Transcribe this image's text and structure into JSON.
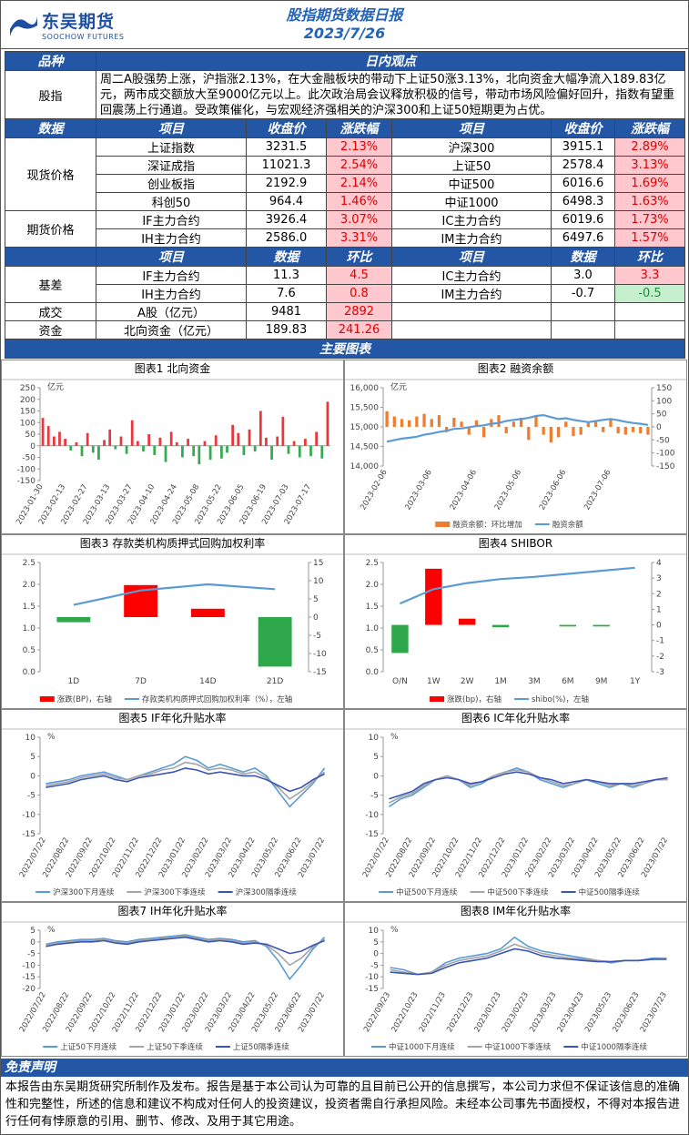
{
  "header": {
    "logo": "东吴期货",
    "logo_sub": "SOOCHOW FUTURES",
    "title": "股指期货数据日报",
    "date": "2023/7/26"
  },
  "table": {
    "head1": [
      "品种",
      "日内观点"
    ],
    "view": {
      "label": "股指",
      "text": "周二A股强势上涨，沪指涨2.13%，在大金融板块的带动下上证50涨3.13%，北向资金大幅净流入189.83亿元，两市成交额放大至9000亿元以上。此次政治局会议释放积极的信号，带动市场风险偏好回升，指数有望重回震荡上行通道。受政策催化，与宏观经济强相关的沪深300和上证50短期更为占优。"
    },
    "head2": [
      "数据",
      "项目",
      "收盘价",
      "涨跌幅",
      "项目",
      "收盘价",
      "涨跌幅"
    ],
    "spot": {
      "label": "现货价格",
      "rows": [
        [
          "上证指数",
          "3231.5",
          "2.13%",
          "沪深300",
          "3915.1",
          "2.89%"
        ],
        [
          "深证成指",
          "11021.3",
          "2.54%",
          "上证50",
          "2578.4",
          "3.13%"
        ],
        [
          "创业板指",
          "2192.9",
          "2.14%",
          "中证500",
          "6016.6",
          "1.69%"
        ],
        [
          "科创50",
          "964.4",
          "1.46%",
          "中证1000",
          "6498.3",
          "1.63%"
        ]
      ]
    },
    "futures": {
      "label": "期货价格",
      "rows": [
        [
          "IF主力合约",
          "3926.4",
          "3.07%",
          "IC主力合约",
          "6019.6",
          "1.73%"
        ],
        [
          "IH主力合约",
          "2586.0",
          "3.31%",
          "IM主力合约",
          "6497.6",
          "1.57%"
        ]
      ]
    },
    "head3": [
      "项目",
      "数据",
      "环比",
      "项目",
      "数据",
      "环比"
    ],
    "basis": {
      "label": "基差",
      "rows": [
        [
          "IF主力合约",
          "11.3",
          "4.5",
          "IC主力合约",
          "3.0",
          "3.3"
        ],
        [
          "IH主力合约",
          "7.6",
          "0.8",
          "IM主力合约",
          "-0.7",
          "-0.5"
        ]
      ]
    },
    "turnover": {
      "label": "成交",
      "row": [
        "A股（亿元）",
        "9481",
        "2892"
      ]
    },
    "capital": {
      "label": "资金",
      "row": [
        "北向资金（亿元）",
        "189.83",
        "241.26"
      ]
    }
  },
  "charts_title": "主要图表",
  "chart_data": [
    {
      "type": "bar",
      "title": "图表1  北向资金",
      "y_unit": "亿元",
      "up_color": "#e8383d",
      "down_color": "#37a853",
      "categories": [
        "2023-01-30",
        null,
        null,
        null,
        "2023-02-13",
        null,
        null,
        null,
        "2023-02-27",
        null,
        null,
        null,
        "2023-03-13",
        null,
        null,
        null,
        "2023-03-27",
        null,
        null,
        null,
        "2023-04-10",
        null,
        null,
        null,
        "2023-04-24",
        null,
        null,
        null,
        "2023-05-08",
        null,
        null,
        null,
        "2023-05-22",
        null,
        null,
        null,
        "2023-06-05",
        null,
        null,
        null,
        "2023-06-19",
        null,
        null,
        null,
        "2023-07-03",
        null,
        null,
        null,
        "2023-07-17",
        null,
        null,
        null
      ],
      "values": [
        120,
        85,
        40,
        60,
        30,
        -20,
        15,
        -45,
        55,
        -30,
        -60,
        25,
        70,
        -15,
        40,
        -35,
        110,
        20,
        -25,
        50,
        -40,
        35,
        -70,
        60,
        15,
        -50,
        30,
        -45,
        -80,
        20,
        -60,
        45,
        -55,
        -30,
        90,
        55,
        -40,
        70,
        -25,
        150,
        35,
        -60,
        40,
        125,
        -35,
        20,
        -50,
        30,
        -45,
        60,
        -55,
        189.83
      ],
      "ylim": [
        -150,
        250
      ],
      "yticks": [
        -150,
        -100,
        -50,
        0,
        50,
        100,
        150,
        200,
        250
      ]
    },
    {
      "type": "combo",
      "title": "图表2  融资余额",
      "y_unit": "亿元",
      "categories": [
        "2023-02-06",
        null,
        null,
        null,
        null,
        null,
        "2023-03-06",
        null,
        null,
        null,
        null,
        null,
        "2023-04-06",
        null,
        null,
        null,
        null,
        null,
        "2023-05-06",
        null,
        null,
        null,
        null,
        null,
        "2023-06-06",
        null,
        null,
        null,
        null,
        null,
        "2023-07-06",
        null,
        null,
        null,
        null,
        null
      ],
      "series": [
        {
          "name": "融资余额：环比增加",
          "color": "#ed7d31",
          "type": "bar",
          "axis": "y2",
          "values": [
            60,
            40,
            30,
            25,
            40,
            50,
            30,
            45,
            -20,
            35,
            20,
            -30,
            25,
            -40,
            30,
            45,
            -25,
            20,
            35,
            -50,
            40,
            -30,
            -60,
            -40,
            20,
            -35,
            -30,
            15,
            25,
            -20,
            30,
            -25,
            -30,
            -20,
            -25,
            -30
          ]
        },
        {
          "name": "融资余额",
          "color": "#5b9bd5",
          "type": "line",
          "values": [
            14620,
            14660,
            14700,
            14720,
            14750,
            14800,
            14830,
            14870,
            14900,
            14950,
            14960,
            14990,
            15020,
            15040,
            15080,
            15100,
            15150,
            15180,
            15200,
            15230,
            15280,
            15300,
            15250,
            15200,
            15220,
            15180,
            15150,
            15120,
            15150,
            15180,
            15200,
            15170,
            15130,
            15100,
            15080,
            15050
          ]
        }
      ],
      "ylim": [
        14000,
        16000
      ],
      "yticks": [
        {
          "value": 14000,
          "label": "14,000"
        },
        {
          "value": 14500,
          "label": "14,500"
        },
        {
          "value": 15000,
          "label": "15,000"
        },
        {
          "value": 15500,
          "label": "15,500"
        },
        {
          "value": 16000,
          "label": "16,000"
        }
      ],
      "y2lim": [
        -150,
        150
      ],
      "y2ticks": [
        -150,
        -100,
        -50,
        0,
        50,
        100,
        150
      ]
    },
    {
      "type": "combo",
      "title": "图表3  存款类机构质押式回购加权利率",
      "up_color": "#ff0000",
      "down_color": "#2ea84a",
      "categories": [
        "1D",
        "7D",
        "14D",
        "21D"
      ],
      "series": [
        {
          "name": "涨跌(BP)，右轴",
          "color": "#ff0000",
          "type": "bar",
          "axis": "y2",
          "values": [
            -1.4,
            8.8,
            2.3,
            -13.6
          ]
        },
        {
          "name": "存款类机构质押式回购加权利率（%），左轴",
          "color": "#5b9bd5",
          "type": "line",
          "values": [
            1.53,
            1.86,
            2.0,
            1.89
          ]
        }
      ],
      "ylim": [
        0,
        2.5
      ],
      "yticks": [
        {
          "value": 0,
          "label": "0.0"
        },
        {
          "value": 0.5,
          "label": "0.5"
        },
        {
          "value": 1,
          "label": "1.0"
        },
        {
          "value": 1.5,
          "label": "1.5"
        },
        {
          "value": 2,
          "label": "2.0"
        },
        {
          "value": 2.5,
          "label": "2.5"
        }
      ],
      "y2lim": [
        -15,
        15
      ],
      "y2ticks": [
        -15,
        -10,
        -5,
        0,
        5,
        10,
        15
      ]
    },
    {
      "type": "combo",
      "title": "图表4  SHIBOR",
      "up_color": "#ff0000",
      "down_color": "#2ea84a",
      "categories": [
        "O/N",
        "1W",
        "2W",
        "1M",
        "3M",
        "6M",
        "9M",
        "1Y"
      ],
      "series": [
        {
          "name": "涨跌(bp)，右轴",
          "color": "#ff0000",
          "type": "bar",
          "axis": "y2",
          "values": [
            -1.8,
            3.6,
            0.4,
            -0.15,
            0,
            -0.1,
            -0.1,
            0
          ]
        },
        {
          "name": "shibo(%)，左轴",
          "color": "#5b9bd5",
          "type": "line",
          "values": [
            1.56,
            1.89,
            2.03,
            2.12,
            2.17,
            2.24,
            2.31,
            2.38
          ]
        }
      ],
      "ylim": [
        0,
        2.5
      ],
      "yticks": [
        {
          "value": 0,
          "label": "0.0"
        },
        {
          "value": 0.5,
          "label": "0.5"
        },
        {
          "value": 1,
          "label": "1.0"
        },
        {
          "value": 1.5,
          "label": "1.5"
        },
        {
          "value": 2,
          "label": "2.0"
        },
        {
          "value": 2.5,
          "label": "2.5"
        }
      ],
      "y2lim": [
        -3,
        4
      ],
      "y2ticks": [
        -3,
        -2,
        -1,
        0,
        1,
        2,
        3,
        4
      ]
    },
    {
      "type": "line",
      "title": "图表5  IF年化升贴水率",
      "y_unit": "%",
      "categories": [
        "2022/07/22",
        null,
        "2022/08/22",
        null,
        "2022/09/22",
        null,
        "2022/10/22",
        null,
        "2022/11/22",
        null,
        "2022/12/22",
        null,
        "2023/01/22",
        null,
        "2023/02/22",
        null,
        "2023/03/22",
        null,
        "2023/04/22",
        null,
        "2023/05/22",
        null,
        "2023/06/22",
        null,
        "2023/07/22"
      ],
      "series": [
        {
          "name": "沪深300下月连续",
          "color": "#5b9bd5",
          "values": [
            -2,
            -1.5,
            -1,
            0,
            0.5,
            1,
            0,
            -1,
            0,
            1,
            2,
            3,
            5,
            4,
            2,
            3,
            2,
            1,
            2,
            0,
            -4,
            -8,
            -5,
            -2,
            2
          ]
        },
        {
          "name": "沪深300下季连续",
          "color": "#a5a5a5",
          "values": [
            -2.5,
            -2,
            -1.5,
            -0.5,
            0,
            0.5,
            -0.5,
            -1,
            0,
            0.5,
            1.5,
            2,
            3.5,
            3,
            1.5,
            2,
            1.5,
            0.5,
            1,
            -0.5,
            -3,
            -6,
            -4,
            -1.5,
            1
          ]
        },
        {
          "name": "沪深300隔季连续",
          "color": "#3a55b4",
          "values": [
            -3,
            -2.5,
            -2,
            -1,
            -0.5,
            0,
            -1,
            -1.5,
            -0.5,
            0,
            0.5,
            1,
            2,
            1.5,
            0.5,
            1,
            0.5,
            0,
            0,
            -1,
            -2.5,
            -4,
            -3,
            -1,
            0.5
          ]
        }
      ],
      "ylim": [
        -15,
        10
      ],
      "yticks": [
        -15,
        -10,
        -5,
        0,
        5,
        10
      ]
    },
    {
      "type": "line",
      "title": "图表6  IC年化升贴水率",
      "y_unit": "%",
      "categories": [
        "2022/07/22",
        null,
        "2022/08/22",
        null,
        "2022/09/22",
        null,
        "2022/10/22",
        null,
        "2022/11/22",
        null,
        "2022/12/22",
        null,
        "2023/01/22",
        null,
        "2023/02/22",
        null,
        "2023/03/22",
        null,
        "2023/04/22",
        null,
        "2023/05/22",
        null,
        "2023/06/22",
        null,
        "2023/07/22"
      ],
      "series": [
        {
          "name": "中证500下月连续",
          "color": "#5b9bd5",
          "values": [
            -8,
            -6,
            -5,
            -3,
            -1,
            0,
            -1,
            -3,
            -2,
            0,
            1,
            2,
            1,
            -1,
            -2,
            -3,
            -2,
            -1,
            -2,
            -3,
            -2,
            -3,
            -2,
            -1,
            -1
          ]
        },
        {
          "name": "中证500下季连续",
          "color": "#a5a5a5",
          "values": [
            -7,
            -5.5,
            -4.5,
            -2.5,
            -1,
            0,
            -1,
            -2.5,
            -1.5,
            0,
            1,
            1.5,
            1,
            -0.5,
            -1.5,
            -2.5,
            -2,
            -1,
            -1.5,
            -2.5,
            -2,
            -2.5,
            -2,
            -1,
            -1
          ]
        },
        {
          "name": "中证500隔季连续",
          "color": "#3a55b4",
          "values": [
            -6,
            -5,
            -4,
            -2,
            -1,
            -0.5,
            -1,
            -2,
            -1.5,
            -0.5,
            0.5,
            1,
            0.5,
            -0.5,
            -1,
            -2,
            -1.5,
            -1,
            -1.5,
            -2,
            -2,
            -2,
            -1.5,
            -1,
            -0.5
          ]
        }
      ],
      "ylim": [
        -15,
        10
      ],
      "yticks": [
        -15,
        -10,
        -5,
        0,
        5,
        10
      ]
    },
    {
      "type": "line",
      "title": "图表7  IH年化升贴水率",
      "y_unit": "%",
      "categories": [
        "2022/07/22",
        null,
        "2022/08/22",
        null,
        "2022/09/22",
        null,
        "2022/10/22",
        null,
        "2022/11/22",
        null,
        "2022/12/22",
        null,
        "2023/01/22",
        null,
        "2023/02/22",
        null,
        "2023/03/22",
        null,
        "2023/04/22",
        null,
        "2023/05/22",
        null,
        "2023/06/22",
        null,
        "2023/07/22"
      ],
      "series": [
        {
          "name": "上证50下月连续",
          "color": "#5b9bd5",
          "values": [
            -1,
            0,
            0.5,
            1,
            1,
            1.5,
            0.5,
            0,
            1,
            1.5,
            2,
            2.5,
            3,
            2,
            1,
            1.5,
            1,
            0,
            0.5,
            -2,
            -8,
            -16,
            -10,
            -3,
            2
          ]
        },
        {
          "name": "上证50下季连续",
          "color": "#a5a5a5",
          "values": [
            -1.5,
            -0.5,
            0,
            0.5,
            0.5,
            1,
            0,
            -0.5,
            0.5,
            1,
            1.5,
            2,
            2.5,
            1.5,
            0.5,
            1,
            0.5,
            -0.5,
            0,
            -1.5,
            -5,
            -10,
            -7,
            -2,
            1
          ]
        },
        {
          "name": "上证50隔季连续",
          "color": "#3a55b4",
          "values": [
            -2,
            -1,
            -0.5,
            0,
            0,
            0.5,
            -0.5,
            -1,
            0,
            0.5,
            1,
            1.5,
            2,
            1,
            0,
            0.5,
            0,
            -1,
            -0.5,
            -1,
            -3,
            -5,
            -4,
            -1.5,
            0.5
          ]
        }
      ],
      "ylim": [
        -20,
        5
      ],
      "yticks": [
        -20,
        -15,
        -10,
        -5,
        0,
        5
      ]
    },
    {
      "type": "line",
      "title": "图表8  IM年化升贴水率",
      "y_unit": "%",
      "categories": [
        "2022/09/23",
        null,
        "2022/10/23",
        null,
        "2022/11/23",
        null,
        "2022/12/23",
        null,
        "2023/01/23",
        null,
        "2023/02/23",
        null,
        "2023/03/23",
        null,
        "2023/04/23",
        null,
        "2023/05/23",
        null,
        "2023/06/23",
        null,
        "2023/07/23"
      ],
      "series": [
        {
          "name": "中证1000下月连续",
          "color": "#5b9bd5",
          "values": [
            -6,
            -7,
            -9,
            -8,
            -4,
            -2,
            -1,
            0,
            2,
            7,
            3,
            1,
            0,
            -1,
            -2,
            -3,
            -4,
            -3,
            -3,
            -2,
            -2
          ]
        },
        {
          "name": "中证1000下季连续",
          "color": "#a5a5a5",
          "values": [
            -7,
            -8,
            -9,
            -8,
            -5,
            -3,
            -2,
            -1,
            1,
            4,
            2,
            0,
            -1,
            -2,
            -2.5,
            -3,
            -3.5,
            -3,
            -3,
            -2.5,
            -2
          ]
        },
        {
          "name": "中证1000隔季连续",
          "color": "#3a55b4",
          "values": [
            -8,
            -8.5,
            -9,
            -8.5,
            -6,
            -4,
            -3,
            -2,
            0,
            2,
            1,
            -1,
            -2,
            -2.5,
            -3,
            -3.5,
            -3.5,
            -3,
            -3,
            -2.5,
            -2.5
          ]
        }
      ],
      "ylim": [
        -15,
        10
      ],
      "yticks": [
        -15,
        -10,
        -5,
        0,
        5,
        10
      ]
    }
  ],
  "disclaimer": {
    "title": "免责声明",
    "text": "本报告由东吴期货研究所制作及发布。报告是基于本公司认为可靠的且目前已公开的信息撰写，本公司力求但不保证该信息的准确性和完整性，所述的信息和建议不构成对任何人的投资建议，投资者需自行承担风险。未经本公司事先书面授权，不得对本报告进行任何有悖原意的引用、删节、修改、及用于其它用途。"
  }
}
